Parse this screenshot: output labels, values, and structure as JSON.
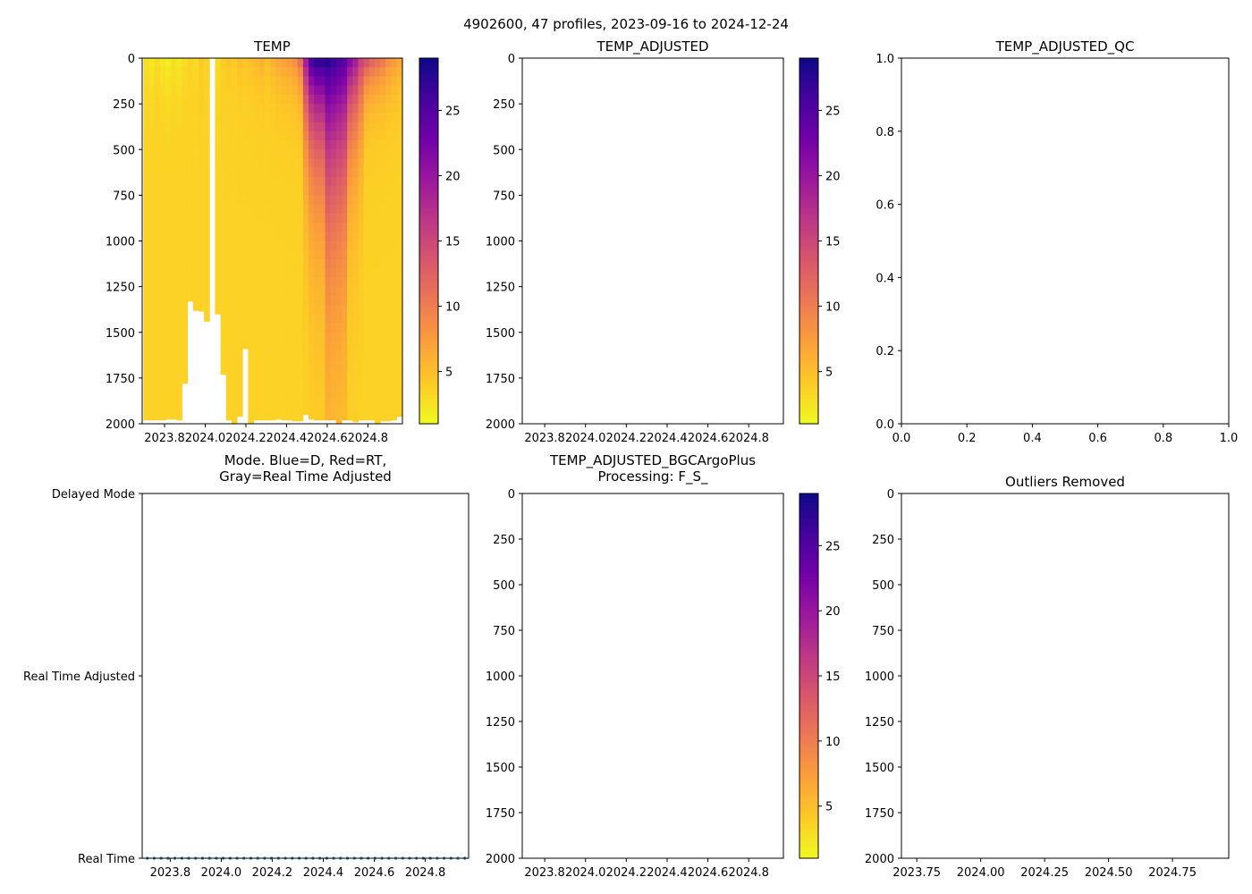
{
  "figure": {
    "title": "4902600, 47 profiles, 2023-09-16 to 2024-12-24"
  },
  "colors": {
    "colormap": [
      "#f0f921",
      "#fdca26",
      "#fb9f3a",
      "#ed7953",
      "#d8576b",
      "#bd3786",
      "#9c179e",
      "#7201a8",
      "#46039f",
      "#0d0887"
    ],
    "mode_dots": "#1f77b4",
    "axis": "#000000"
  },
  "chart_data": [
    {
      "id": "temp",
      "type": "heatmap",
      "title": "TEMP",
      "xlim": [
        2023.69,
        2024.97
      ],
      "ylim": [
        2000,
        0
      ],
      "xticks": [
        2023.8,
        2024.0,
        2024.2,
        2024.4,
        2024.6,
        2024.8
      ],
      "xtick_labels": [
        "2023.8",
        "2024.0",
        "2024.2",
        "2024.4",
        "2024.6",
        "2024.8"
      ],
      "yticks": [
        0,
        250,
        500,
        750,
        1000,
        1250,
        1500,
        1750,
        2000
      ],
      "ytick_labels": [
        "0",
        "250",
        "500",
        "750",
        "1000",
        "1250",
        "1500",
        "1750",
        "2000"
      ],
      "colorbar": {
        "vmin": 1,
        "vmax": 29,
        "ticks": [
          5,
          10,
          15,
          20,
          25
        ],
        "tick_labels": [
          "5",
          "10",
          "15",
          "20",
          "25"
        ]
      },
      "profile_start": 2023.71,
      "profile_end": 2024.955,
      "profiles": 47,
      "max_depth": [
        1980,
        1980,
        1980,
        1980,
        1975,
        1975,
        1980,
        1780,
        1330,
        1380,
        1385,
        1440,
        1410,
        1400,
        1730,
        1980,
        2000,
        1960,
        1590,
        2000,
        1980,
        1980,
        1980,
        1980,
        1975,
        1980,
        1980,
        1985,
        1985,
        1950,
        1975,
        1980,
        1980,
        1980,
        1980,
        2000,
        1980,
        1980,
        1990,
        1980,
        1980,
        1980,
        2000,
        1985,
        1985,
        1980,
        1960
      ],
      "surface_temp": [
        2.5,
        2.0,
        3.0,
        2.0,
        1.5,
        2.5,
        2.0,
        3.0,
        3.5,
        3.0,
        4.0,
        3.5,
        4.0,
        3.0,
        4.0,
        4.5,
        4.0,
        5.0,
        4.5,
        5.0,
        5.5,
        6.0,
        5.0,
        6.0,
        7.0,
        7.5,
        8.0,
        9.0,
        12.0,
        20.0,
        26.0,
        28.0,
        28.0,
        28.0,
        27.0,
        26.0,
        25.0,
        22.0,
        20.0,
        16.0,
        15.0,
        13.0,
        12.0,
        11.0,
        9.0,
        8.0,
        7.0
      ],
      "deep_temp": 3.6,
      "gap_profile_index": 12
    },
    {
      "id": "temp_adjusted",
      "type": "heatmap",
      "title": "TEMP_ADJUSTED",
      "xlim": [
        2023.69,
        2024.97
      ],
      "ylim": [
        2000,
        0
      ],
      "xticks": [
        2023.8,
        2024.0,
        2024.2,
        2024.4,
        2024.6,
        2024.8
      ],
      "xtick_labels": [
        "2023.8",
        "2024.0",
        "2024.2",
        "2024.4",
        "2024.6",
        "2024.8"
      ],
      "yticks": [
        0,
        250,
        500,
        750,
        1000,
        1250,
        1500,
        1750,
        2000
      ],
      "ytick_labels": [
        "0",
        "250",
        "500",
        "750",
        "1000",
        "1250",
        "1500",
        "1750",
        "2000"
      ],
      "colorbar": {
        "vmin": 1,
        "vmax": 29,
        "ticks": [
          5,
          10,
          15,
          20,
          25
        ],
        "tick_labels": [
          "5",
          "10",
          "15",
          "20",
          "25"
        ]
      },
      "values": []
    },
    {
      "id": "temp_adjusted_qc",
      "type": "scatter",
      "title": "TEMP_ADJUSTED_QC",
      "xlim": [
        0,
        1
      ],
      "ylim": [
        0,
        1
      ],
      "xticks": [
        0,
        0.2,
        0.4,
        0.6,
        0.8,
        1.0
      ],
      "xtick_labels": [
        "0.0",
        "0.2",
        "0.4",
        "0.6",
        "0.8",
        "1.0"
      ],
      "yticks": [
        0,
        0.2,
        0.4,
        0.6,
        0.8,
        1.0
      ],
      "ytick_labels": [
        "0.0",
        "0.2",
        "0.4",
        "0.6",
        "0.8",
        "1.0"
      ],
      "values": []
    },
    {
      "id": "mode",
      "type": "scatter",
      "title_lines": [
        "Mode. Blue=D, Red=RT,",
        "Gray=Real Time Adjusted"
      ],
      "xlim": [
        2023.69,
        2024.97
      ],
      "ylim": [
        0,
        2
      ],
      "xticks": [
        2023.8,
        2024.0,
        2024.2,
        2024.4,
        2024.6,
        2024.8
      ],
      "xtick_labels": [
        "2023.8",
        "2024.0",
        "2024.2",
        "2024.4",
        "2024.6",
        "2024.8"
      ],
      "yticks": [
        0,
        1,
        2
      ],
      "ytick_labels": [
        "Real Time",
        "Real Time Adjusted",
        "Delayed Mode"
      ],
      "series": [
        {
          "name": "Real Time",
          "y": 0,
          "x_start": 2023.71,
          "x_end": 2024.955,
          "count": 47
        }
      ]
    },
    {
      "id": "temp_adjusted_bgc",
      "type": "heatmap",
      "title_lines": [
        "TEMP_ADJUSTED_BGCArgoPlus",
        "Processing: F_S_"
      ],
      "xlim": [
        2023.69,
        2024.97
      ],
      "ylim": [
        2000,
        0
      ],
      "xticks": [
        2023.8,
        2024.0,
        2024.2,
        2024.4,
        2024.6,
        2024.8
      ],
      "xtick_labels": [
        "2023.8",
        "2024.0",
        "2024.2",
        "2024.4",
        "2024.6",
        "2024.8"
      ],
      "yticks": [
        0,
        250,
        500,
        750,
        1000,
        1250,
        1500,
        1750,
        2000
      ],
      "ytick_labels": [
        "0",
        "250",
        "500",
        "750",
        "1000",
        "1250",
        "1500",
        "1750",
        "2000"
      ],
      "colorbar": {
        "vmin": 1,
        "vmax": 29,
        "ticks": [
          5,
          10,
          15,
          20,
          25
        ],
        "tick_labels": [
          "5",
          "10",
          "15",
          "20",
          "25"
        ]
      },
      "values": []
    },
    {
      "id": "outliers",
      "type": "scatter",
      "title": "Outliers Removed",
      "xlim": [
        2023.69,
        2024.97
      ],
      "ylim": [
        2000,
        0
      ],
      "xticks": [
        2023.75,
        2024.0,
        2024.25,
        2024.5,
        2024.75
      ],
      "xtick_labels": [
        "2023.75",
        "2024.00",
        "2024.25",
        "2024.50",
        "2024.75"
      ],
      "yticks": [
        0,
        250,
        500,
        750,
        1000,
        1250,
        1500,
        1750,
        2000
      ],
      "ytick_labels": [
        "0",
        "250",
        "500",
        "750",
        "1000",
        "1250",
        "1500",
        "1750",
        "2000"
      ],
      "values": []
    }
  ]
}
